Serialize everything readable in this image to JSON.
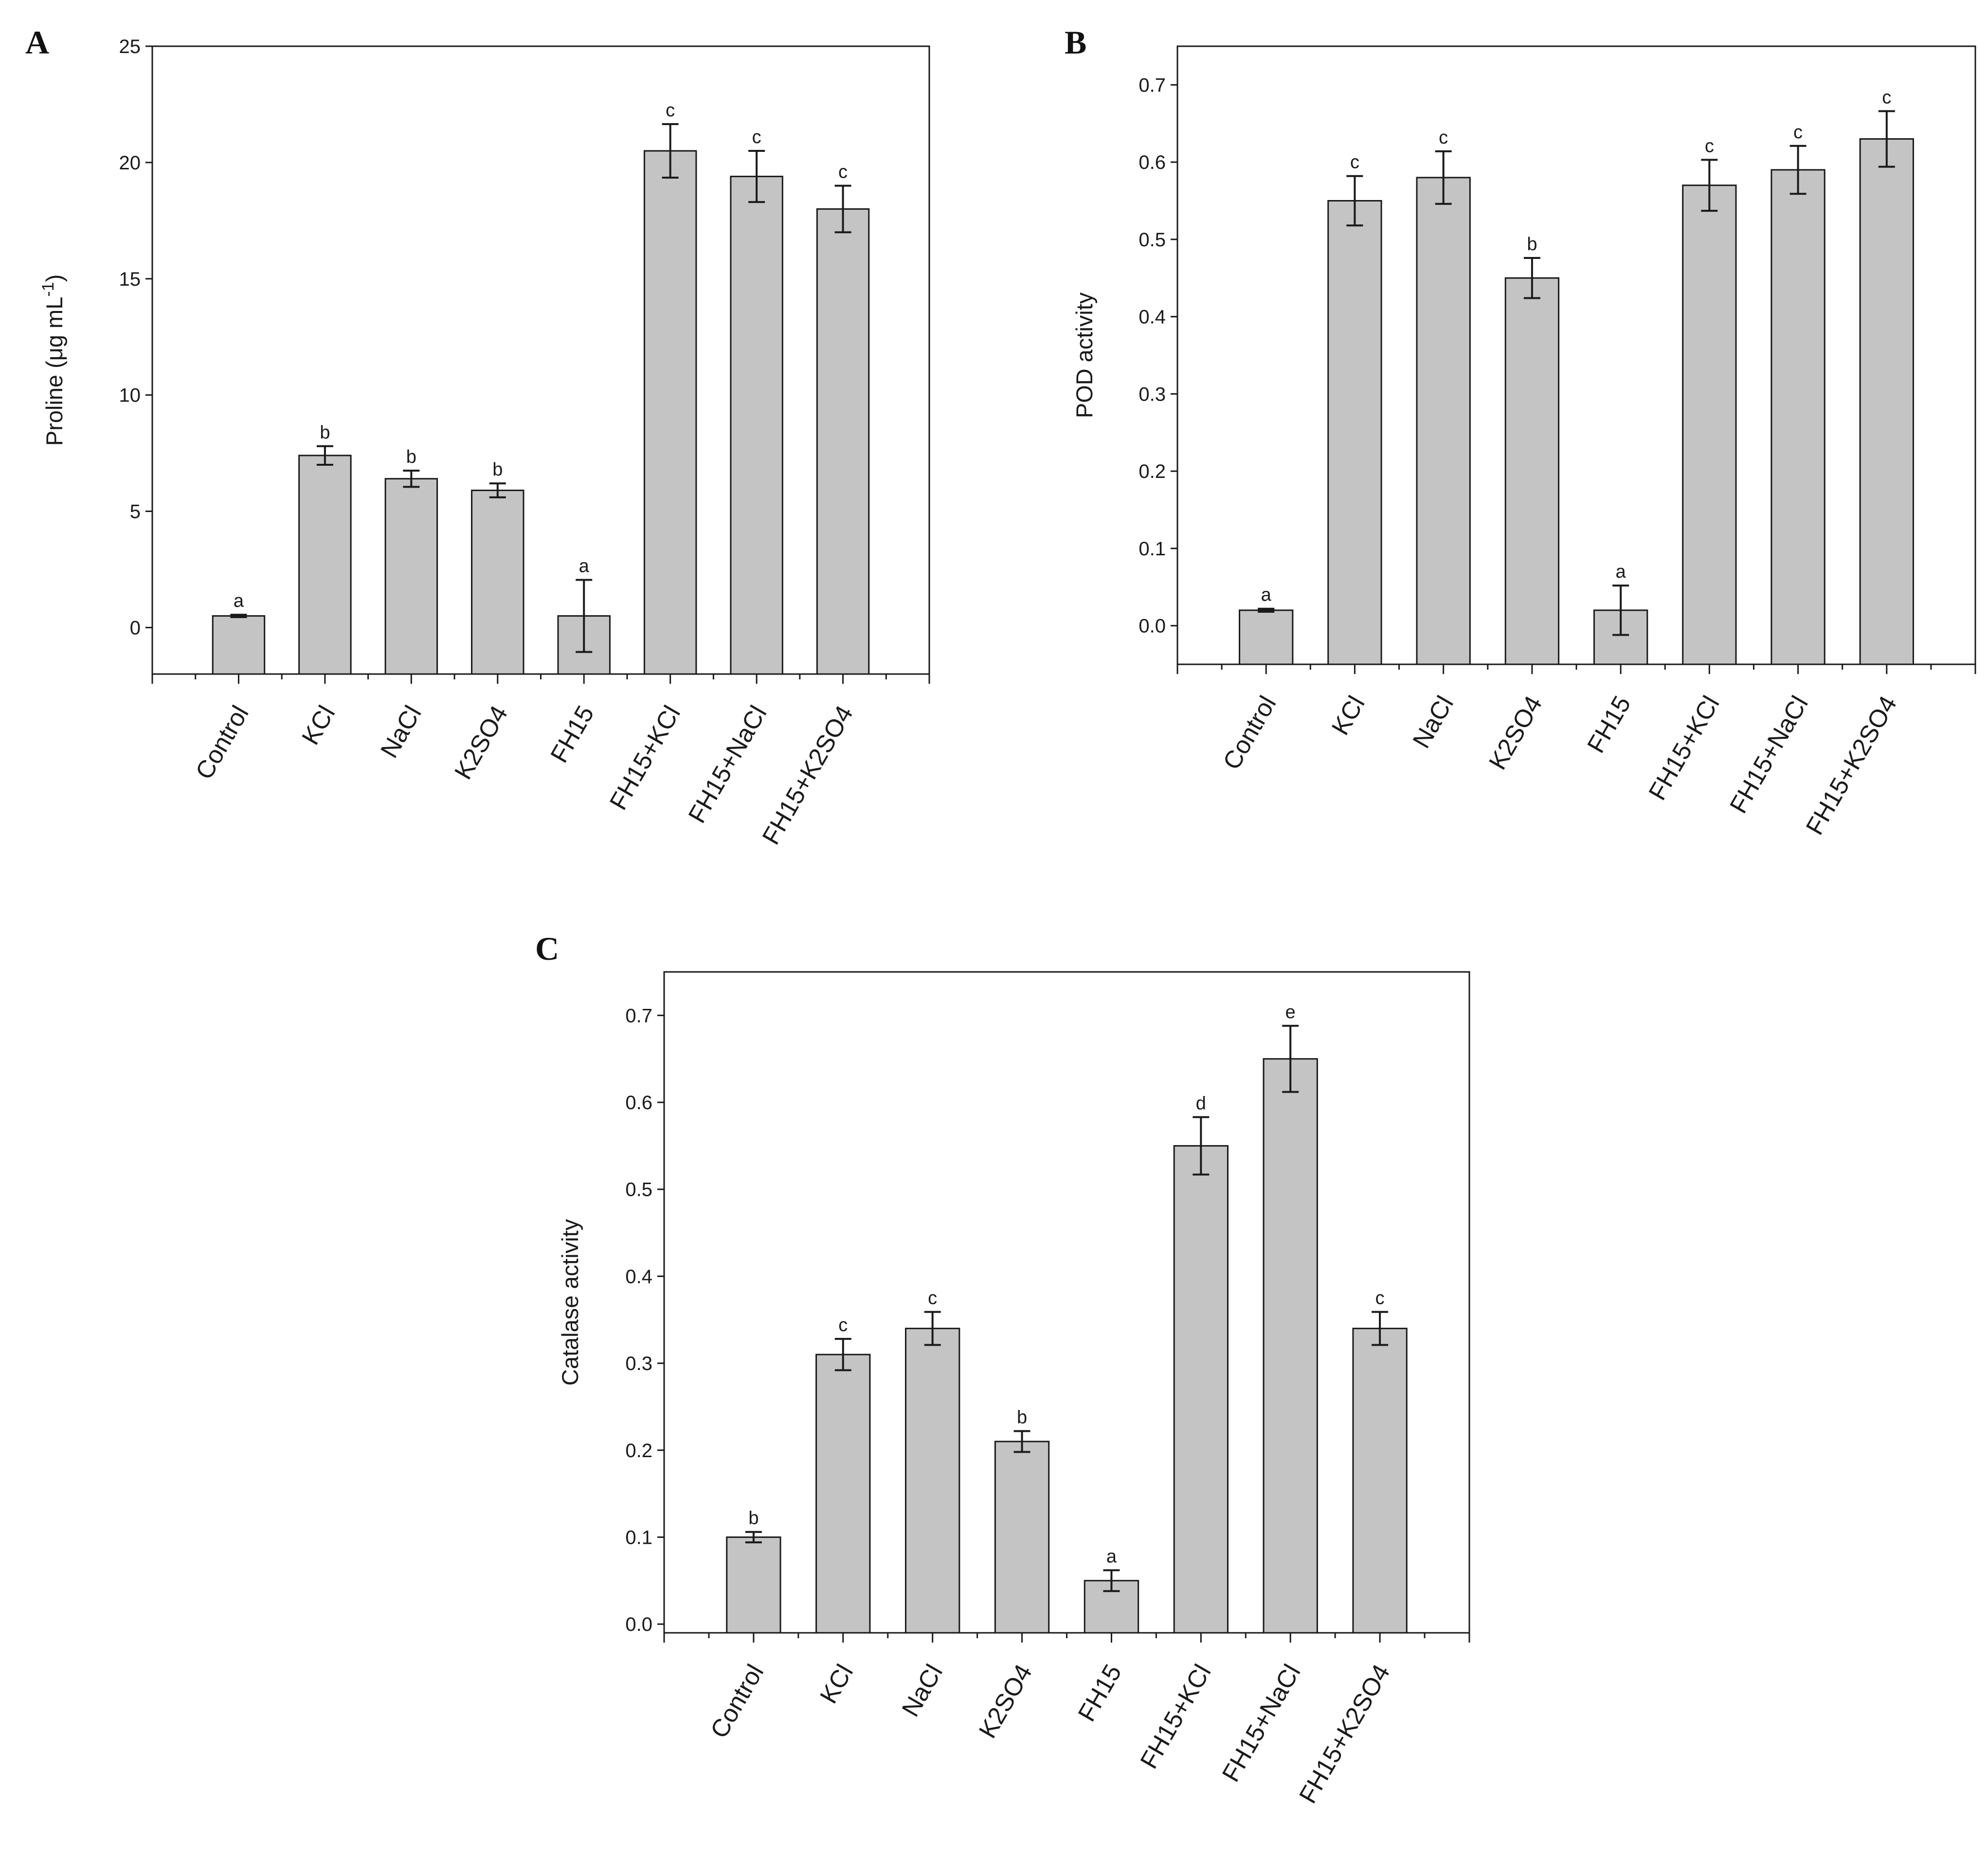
{
  "colors": {
    "bar_fill": "#c4c4c4",
    "stroke": "#1a1a1a",
    "background": "#ffffff"
  },
  "chart_data": [
    {
      "panel": "A",
      "type": "bar",
      "ylabel": "Proline (μg mL",
      "ylabel_sup": "-1",
      "ylabel_end": ")",
      "ylim": [
        -2,
        25
      ],
      "yticks": [
        0,
        5,
        10,
        15,
        20,
        25
      ],
      "categories": [
        "Control",
        "KCl",
        "NaCl",
        "K2SO4",
        "FH15",
        "FH15+KCl",
        "FH15+NaCl",
        "FH15+K2SO4"
      ],
      "values": [
        0.5,
        7.4,
        6.4,
        5.9,
        0.5,
        20.5,
        19.4,
        18.0
      ],
      "errors": [
        0.05,
        0.4,
        0.35,
        0.3,
        1.55,
        1.15,
        1.1,
        1.0
      ],
      "significance": [
        "a",
        "b",
        "b",
        "b",
        "a",
        "c",
        "c",
        "c"
      ]
    },
    {
      "panel": "B",
      "type": "bar",
      "ylabel": "POD activity",
      "ylim": [
        -0.05,
        0.75
      ],
      "yticks": [
        0.0,
        0.1,
        0.2,
        0.3,
        0.4,
        0.5,
        0.6,
        0.7
      ],
      "categories": [
        "Control",
        "KCl",
        "NaCl",
        "K2SO4",
        "FH15",
        "FH15+KCl",
        "FH15+NaCl",
        "FH15+K2SO4"
      ],
      "values": [
        0.02,
        0.55,
        0.58,
        0.45,
        0.02,
        0.57,
        0.59,
        0.63
      ],
      "errors": [
        0.002,
        0.032,
        0.034,
        0.026,
        0.032,
        0.033,
        0.031,
        0.036
      ],
      "significance": [
        "a",
        "c",
        "c",
        "b",
        "a",
        "c",
        "c",
        "c"
      ]
    },
    {
      "panel": "C",
      "type": "bar",
      "ylabel": "Catalase activity",
      "ylim": [
        -0.01,
        0.75
      ],
      "yticks": [
        0.0,
        0.1,
        0.2,
        0.3,
        0.4,
        0.5,
        0.6,
        0.7
      ],
      "categories": [
        "Control",
        "KCl",
        "NaCl",
        "K2SO4",
        "FH15",
        "FH15+KCl",
        "FH15+NaCl",
        "FH15+K2SO4"
      ],
      "values": [
        0.1,
        0.31,
        0.34,
        0.21,
        0.05,
        0.55,
        0.65,
        0.34
      ],
      "errors": [
        0.006,
        0.018,
        0.019,
        0.012,
        0.012,
        0.033,
        0.038,
        0.019
      ],
      "significance": [
        "b",
        "c",
        "c",
        "b",
        "a",
        "d",
        "e",
        "c"
      ]
    }
  ]
}
